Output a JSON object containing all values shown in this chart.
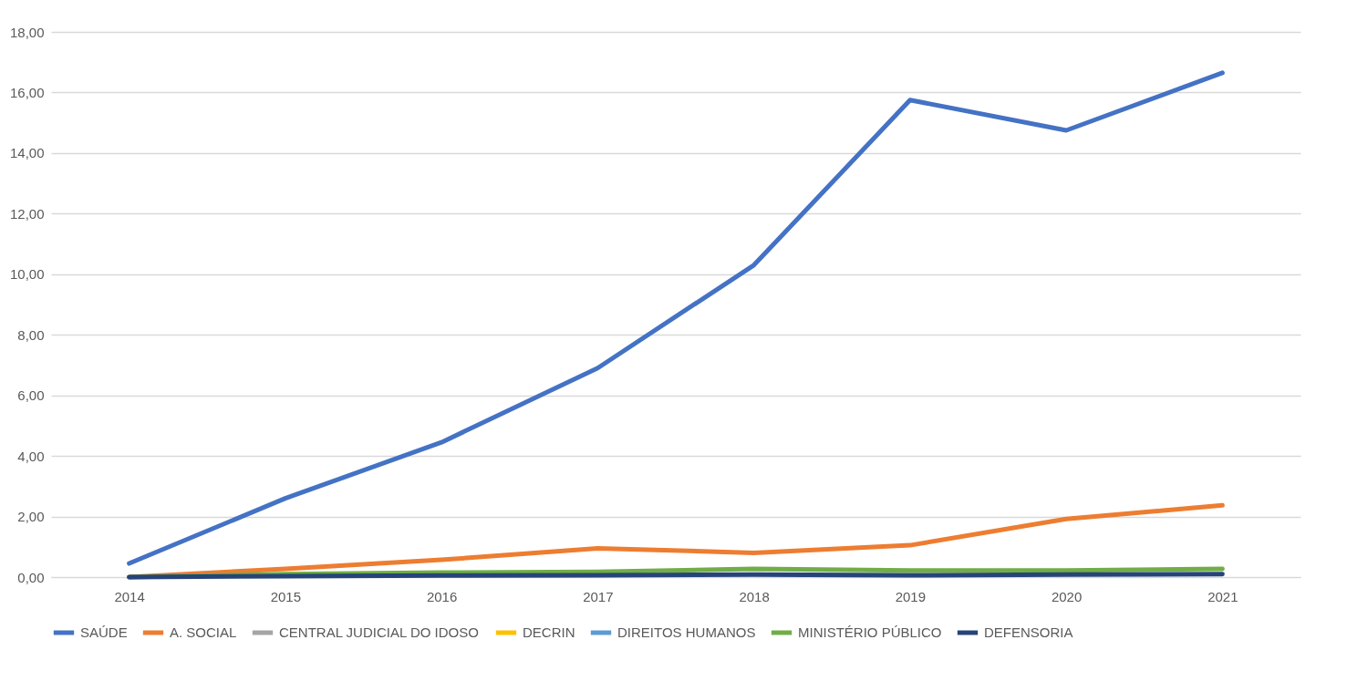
{
  "chart_data": {
    "type": "line",
    "categories": [
      "2014",
      "2015",
      "2016",
      "2017",
      "2018",
      "2019",
      "2020",
      "2021"
    ],
    "series": [
      {
        "name": "SAÚDE",
        "color": "#4472c4",
        "values": [
          0.45,
          2.6,
          4.45,
          6.9,
          10.3,
          15.75,
          14.75,
          16.65
        ]
      },
      {
        "name": "A. SOCIAL",
        "color": "#ed7d31",
        "values": [
          0.0,
          0.27,
          0.57,
          0.95,
          0.8,
          1.05,
          1.92,
          2.37
        ]
      },
      {
        "name": "CENTRAL JUDICIAL DO IDOSO",
        "color": "#a5a5a5",
        "values": [
          null,
          null,
          null,
          null,
          null,
          null,
          null,
          null
        ]
      },
      {
        "name": "DECRIN",
        "color": "#ffc000",
        "values": [
          null,
          null,
          null,
          null,
          null,
          null,
          null,
          null
        ]
      },
      {
        "name": "DIREITOS HUMANOS",
        "color": "#5b9bd5",
        "values": [
          null,
          null,
          null,
          null,
          null,
          null,
          null,
          null
        ]
      },
      {
        "name": "MINISTÉRIO PÚBLICO",
        "color": "#70ad47",
        "values": [
          0.0,
          0.1,
          0.15,
          0.17,
          0.27,
          0.22,
          0.22,
          0.27
        ]
      },
      {
        "name": "DEFENSORIA",
        "color": "#264478",
        "values": [
          0.0,
          0.03,
          0.05,
          0.06,
          0.08,
          0.06,
          0.08,
          0.1
        ]
      }
    ],
    "ylim": [
      0,
      18
    ],
    "yticks": [
      {
        "value": 0,
        "label": "0,00"
      },
      {
        "value": 2,
        "label": "2,00"
      },
      {
        "value": 4,
        "label": "4,00"
      },
      {
        "value": 6,
        "label": "6,00"
      },
      {
        "value": 8,
        "label": "8,00"
      },
      {
        "value": 10,
        "label": "10,00"
      },
      {
        "value": 12,
        "label": "12,00"
      },
      {
        "value": 14,
        "label": "14,00"
      },
      {
        "value": 16,
        "label": "16,00"
      },
      {
        "value": 18,
        "label": "18,00"
      }
    ],
    "grid": "y",
    "legend": "bottom",
    "line_style": "solid",
    "marker": "none"
  }
}
